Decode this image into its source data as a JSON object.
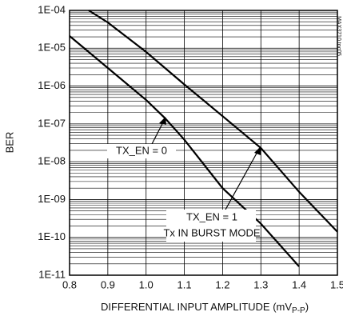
{
  "chart_data": {
    "type": "line",
    "ylabel": "BER",
    "xlabel": "DIFFERENTIAL INPUT AMPLITUDE (mV",
    "xlabel_sub": "P-P",
    "xlabel_end": ")",
    "side_note": "MAX3710 toc05",
    "log_y": true,
    "grid": true,
    "xlim": [
      0.8,
      1.5
    ],
    "xticks": [
      0.8,
      0.9,
      {
        "value": 1,
        "label": "1.0"
      },
      1.1,
      1.2,
      1.3,
      1.4,
      1.5
    ],
    "ylim": [
      1e-11,
      0.0001
    ],
    "yticks": [
      {
        "value": 1e-11,
        "label": "1E-11"
      },
      {
        "value": 1e-10,
        "label": "1E-10"
      },
      {
        "value": 1e-09,
        "label": "1E-09"
      },
      {
        "value": 1e-08,
        "label": "1E-08"
      },
      {
        "value": 1e-07,
        "label": "1E-07"
      },
      {
        "value": 1e-06,
        "label": "1E-06"
      },
      {
        "value": 1e-05,
        "label": "1E-05"
      },
      {
        "value": 0.0001,
        "label": "1E-04"
      }
    ],
    "series": [
      {
        "name": "TX_EN = 0",
        "color": "#000000",
        "x": [
          0.8,
          0.9,
          1.0,
          1.05,
          1.1,
          1.2,
          1.3,
          1.4
        ],
        "values": [
          2.1e-05,
          3e-06,
          4.3e-07,
          1.4e-07,
          3.8e-08,
          2e-09,
          2.3e-10,
          1.7e-11
        ]
      },
      {
        "name": "TX_EN = 1",
        "color": "#000000",
        "x": [
          0.85,
          0.9,
          1.0,
          1.1,
          1.2,
          1.3,
          1.4,
          1.5
        ],
        "values": [
          0.0001,
          4.8e-05,
          8e-06,
          1.1e-06,
          1.6e-07,
          2.3e-08,
          1.6e-09,
          1.4e-10
        ]
      }
    ],
    "annotations": [
      "TX_EN = 0",
      "TX_EN = 1",
      "Tx IN BURST MODE"
    ]
  }
}
